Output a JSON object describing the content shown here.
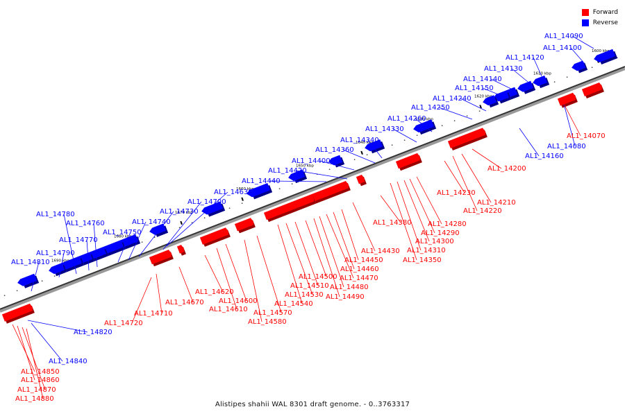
{
  "legend": {
    "forward_label": "Forward",
    "reverse_label": "Reverse",
    "forward_color": "#ff0000",
    "reverse_color": "#0000ff"
  },
  "caption": "Alistipes shahii WAL 8301 draft genome. - 0..3763317",
  "scale_labels": [
    "1600 kbp",
    "1610 kbp",
    "1620 kbp",
    "1630 kbp",
    "1640 kbp",
    "1650 kbp",
    "1660 kbp",
    "1670 kbp",
    "1680 kbp",
    "1690 kbp"
  ],
  "reverse_genes": [
    "AL1_14090",
    "AL1_14100",
    "AL1_14120",
    "AL1_14130",
    "AL1_14140",
    "AL1_14150",
    "AL1_14240",
    "AL1_14250",
    "AL1_14260",
    "AL1_14330",
    "AL1_14340",
    "AL1_14360",
    "AL1_14400",
    "AL1_14420",
    "AL1_14440",
    "AL1_14630",
    "AL1_14700",
    "AL1_14730",
    "AL1_14740",
    "AL1_14750",
    "AL1_14760",
    "AL1_14770",
    "AL1_14780",
    "AL1_14790",
    "AL1_14810",
    "AL1_14080",
    "AL1_14160",
    "AL1_14820",
    "AL1_14840"
  ],
  "forward_genes": [
    "AL1_14070",
    "AL1_14200",
    "AL1_14210",
    "AL1_14220",
    "AL1_14230",
    "AL1_14280",
    "AL1_14290",
    "AL1_14300",
    "AL1_14310",
    "AL1_14350",
    "AL1_14380",
    "AL1_14430",
    "AL1_14450",
    "AL1_14460",
    "AL1_14470",
    "AL1_14480",
    "AL1_14490",
    "AL1_14500",
    "AL1_14510",
    "AL1_14530",
    "AL1_14540",
    "AL1_14570",
    "AL1_14580",
    "AL1_14600",
    "AL1_14610",
    "AL1_14620",
    "AL1_14670",
    "AL1_14710",
    "AL1_14720",
    "AL1_14850",
    "AL1_14860",
    "AL1_14870",
    "AL1_14880"
  ]
}
